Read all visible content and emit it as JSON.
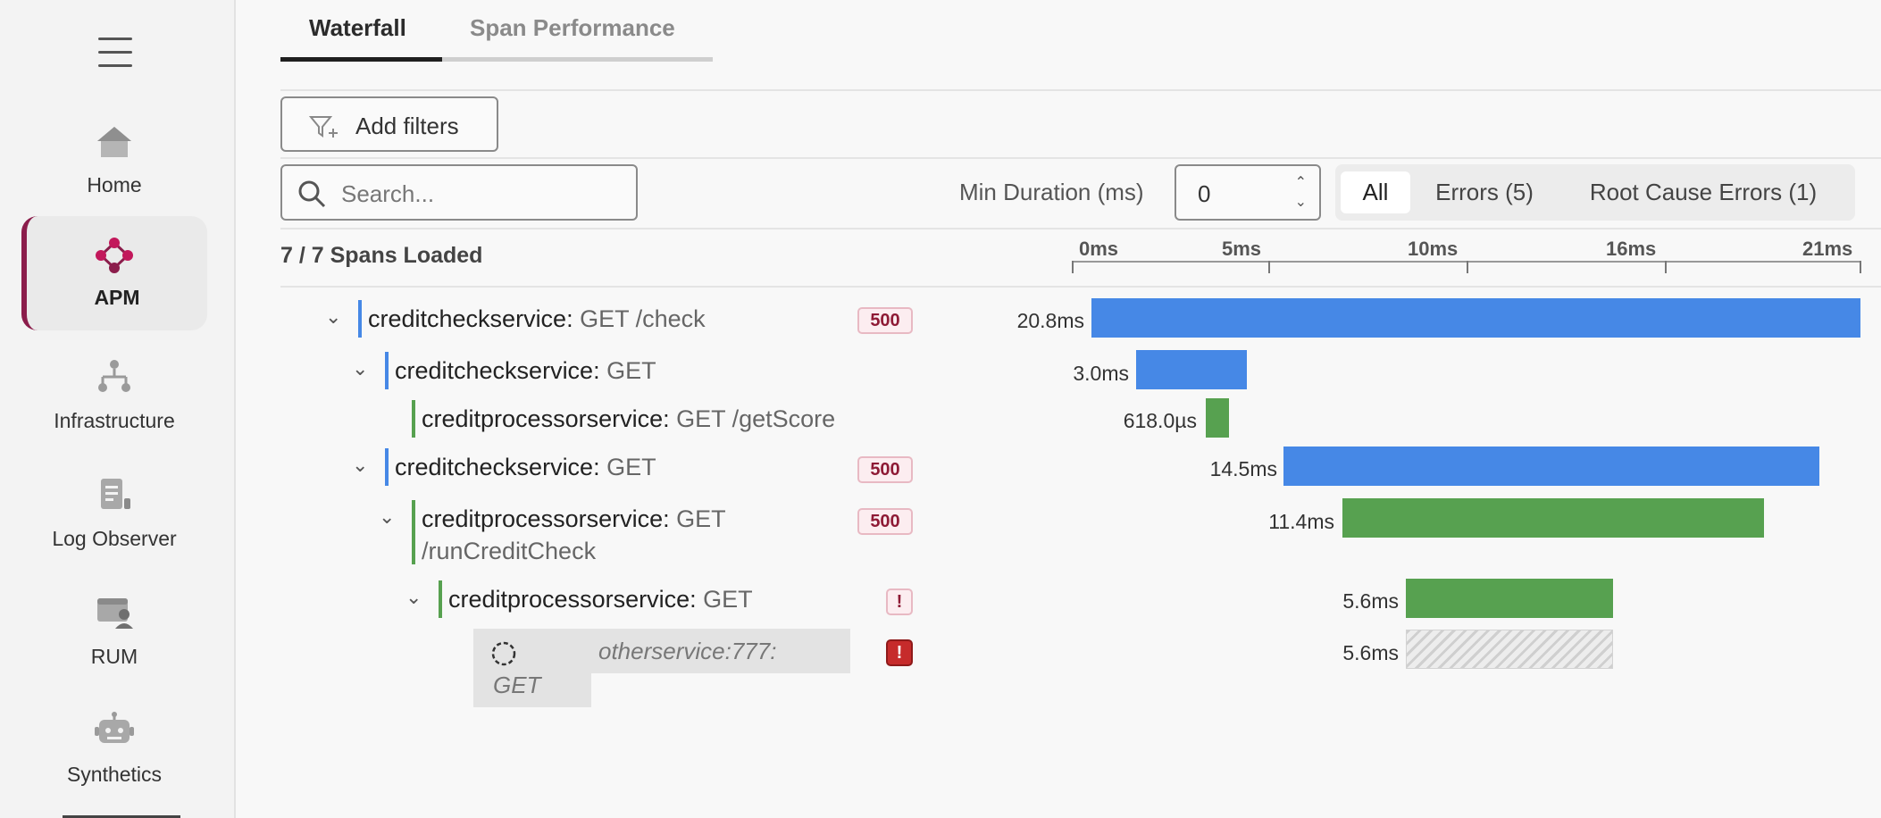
{
  "sidebar": {
    "items": [
      {
        "label": "Home",
        "icon": "home-icon"
      },
      {
        "label": "APM",
        "icon": "apm-icon",
        "active": true
      },
      {
        "label": "Infrastructure",
        "icon": "infrastructure-icon"
      },
      {
        "label": "Log Observer",
        "icon": "log-icon"
      },
      {
        "label": "RUM",
        "icon": "rum-icon"
      },
      {
        "label": "Synthetics",
        "icon": "robot-icon"
      }
    ],
    "accent": "#8b1d4b"
  },
  "tabs": [
    {
      "label": "Waterfall",
      "active": true
    },
    {
      "label": "Span Performance",
      "active": false
    }
  ],
  "toolbar": {
    "add_filters": "Add filters",
    "search_placeholder": "Search...",
    "min_duration_label": "Min Duration (ms)",
    "min_duration_value": "0",
    "segments": [
      {
        "label": "All",
        "active": true
      },
      {
        "label": "Errors (5)",
        "active": false
      },
      {
        "label": "Root Cause Errors (1)",
        "active": false
      }
    ]
  },
  "waterfall": {
    "spans_loaded": "7 / 7 Spans Loaded",
    "axis_ticks": [
      "0ms",
      "5ms",
      "10ms",
      "16ms",
      "21ms"
    ],
    "total_ms": 20.8,
    "rows": [
      {
        "service": "creditcheckservice:",
        "op": " GET /check",
        "badge": "500",
        "duration": "20.8ms",
        "start_ms": 0,
        "dur_ms": 20.8,
        "color": "blue"
      },
      {
        "service": "creditcheckservice:",
        "op": " GET",
        "badge": "",
        "duration": "3.0ms",
        "start_ms": 1.2,
        "dur_ms": 3.0,
        "color": "blue"
      },
      {
        "service": "creditprocessorservice:",
        "op": " GET /getScore",
        "badge": "",
        "duration": "618.0µs",
        "start_ms": 3.1,
        "dur_ms": 0.618,
        "color": "green"
      },
      {
        "service": "creditcheckservice:",
        "op": " GET",
        "badge": "500",
        "duration": "14.5ms",
        "start_ms": 5.2,
        "dur_ms": 14.5,
        "color": "blue"
      },
      {
        "service": "creditprocessorservice:",
        "op": " GET",
        "op2": "/runCreditCheck",
        "badge": "500",
        "duration": "11.4ms",
        "start_ms": 6.8,
        "dur_ms": 11.4,
        "color": "green"
      },
      {
        "service": "creditprocessorservice:",
        "op": " GET",
        "badge": "!",
        "duration": "5.6ms",
        "start_ms": 8.5,
        "dur_ms": 5.6,
        "color": "green"
      },
      {
        "service": "otherservice:777:",
        "op": "GET",
        "badge": "!",
        "duration": "5.6ms",
        "start_ms": 8.5,
        "dur_ms": 5.6,
        "color": "hatch",
        "inferred": true
      }
    ]
  },
  "colors": {
    "blue": "#4688e6",
    "green": "#57a150",
    "error_badge_bg": "#fcedf0",
    "error_badge_solid": "#c62b2b"
  }
}
